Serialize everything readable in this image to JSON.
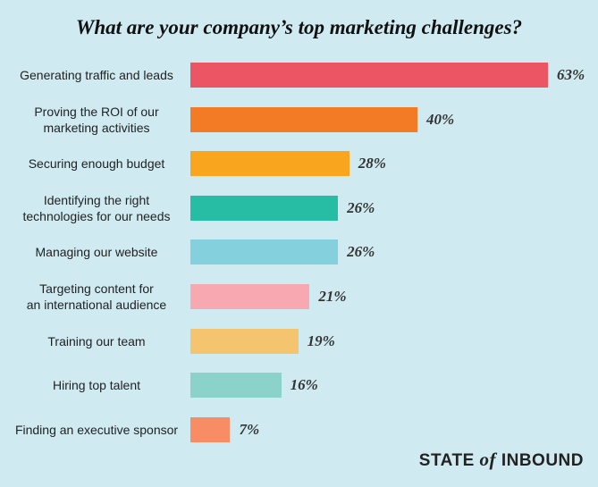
{
  "chart_data": {
    "type": "bar",
    "orientation": "horizontal",
    "title": "What are your company’s top marketing challenges?",
    "categories": [
      "Generating traffic and leads",
      "Proving the ROI of our\nmarketing activities",
      "Securing enough budget",
      "Identifying the right\ntechnologies for our needs",
      "Managing our website",
      "Targeting content for\nan international audience",
      "Training our team",
      "Hiring top talent",
      "Finding an executive sponsor"
    ],
    "values": [
      63,
      40,
      28,
      26,
      26,
      21,
      19,
      16,
      7
    ],
    "value_labels": [
      "63%",
      "40%",
      "28%",
      "26%",
      "26%",
      "21%",
      "19%",
      "16%",
      "7%"
    ],
    "colors": [
      "#ec5564",
      "#f47b25",
      "#f9a51e",
      "#27bca4",
      "#84d0dc",
      "#f7a8b0",
      "#f5c46e",
      "#8bd3ca",
      "#f88c65"
    ]
  },
  "brand": {
    "first": "STATE",
    "middle": "of",
    "last": "INBOUND"
  }
}
